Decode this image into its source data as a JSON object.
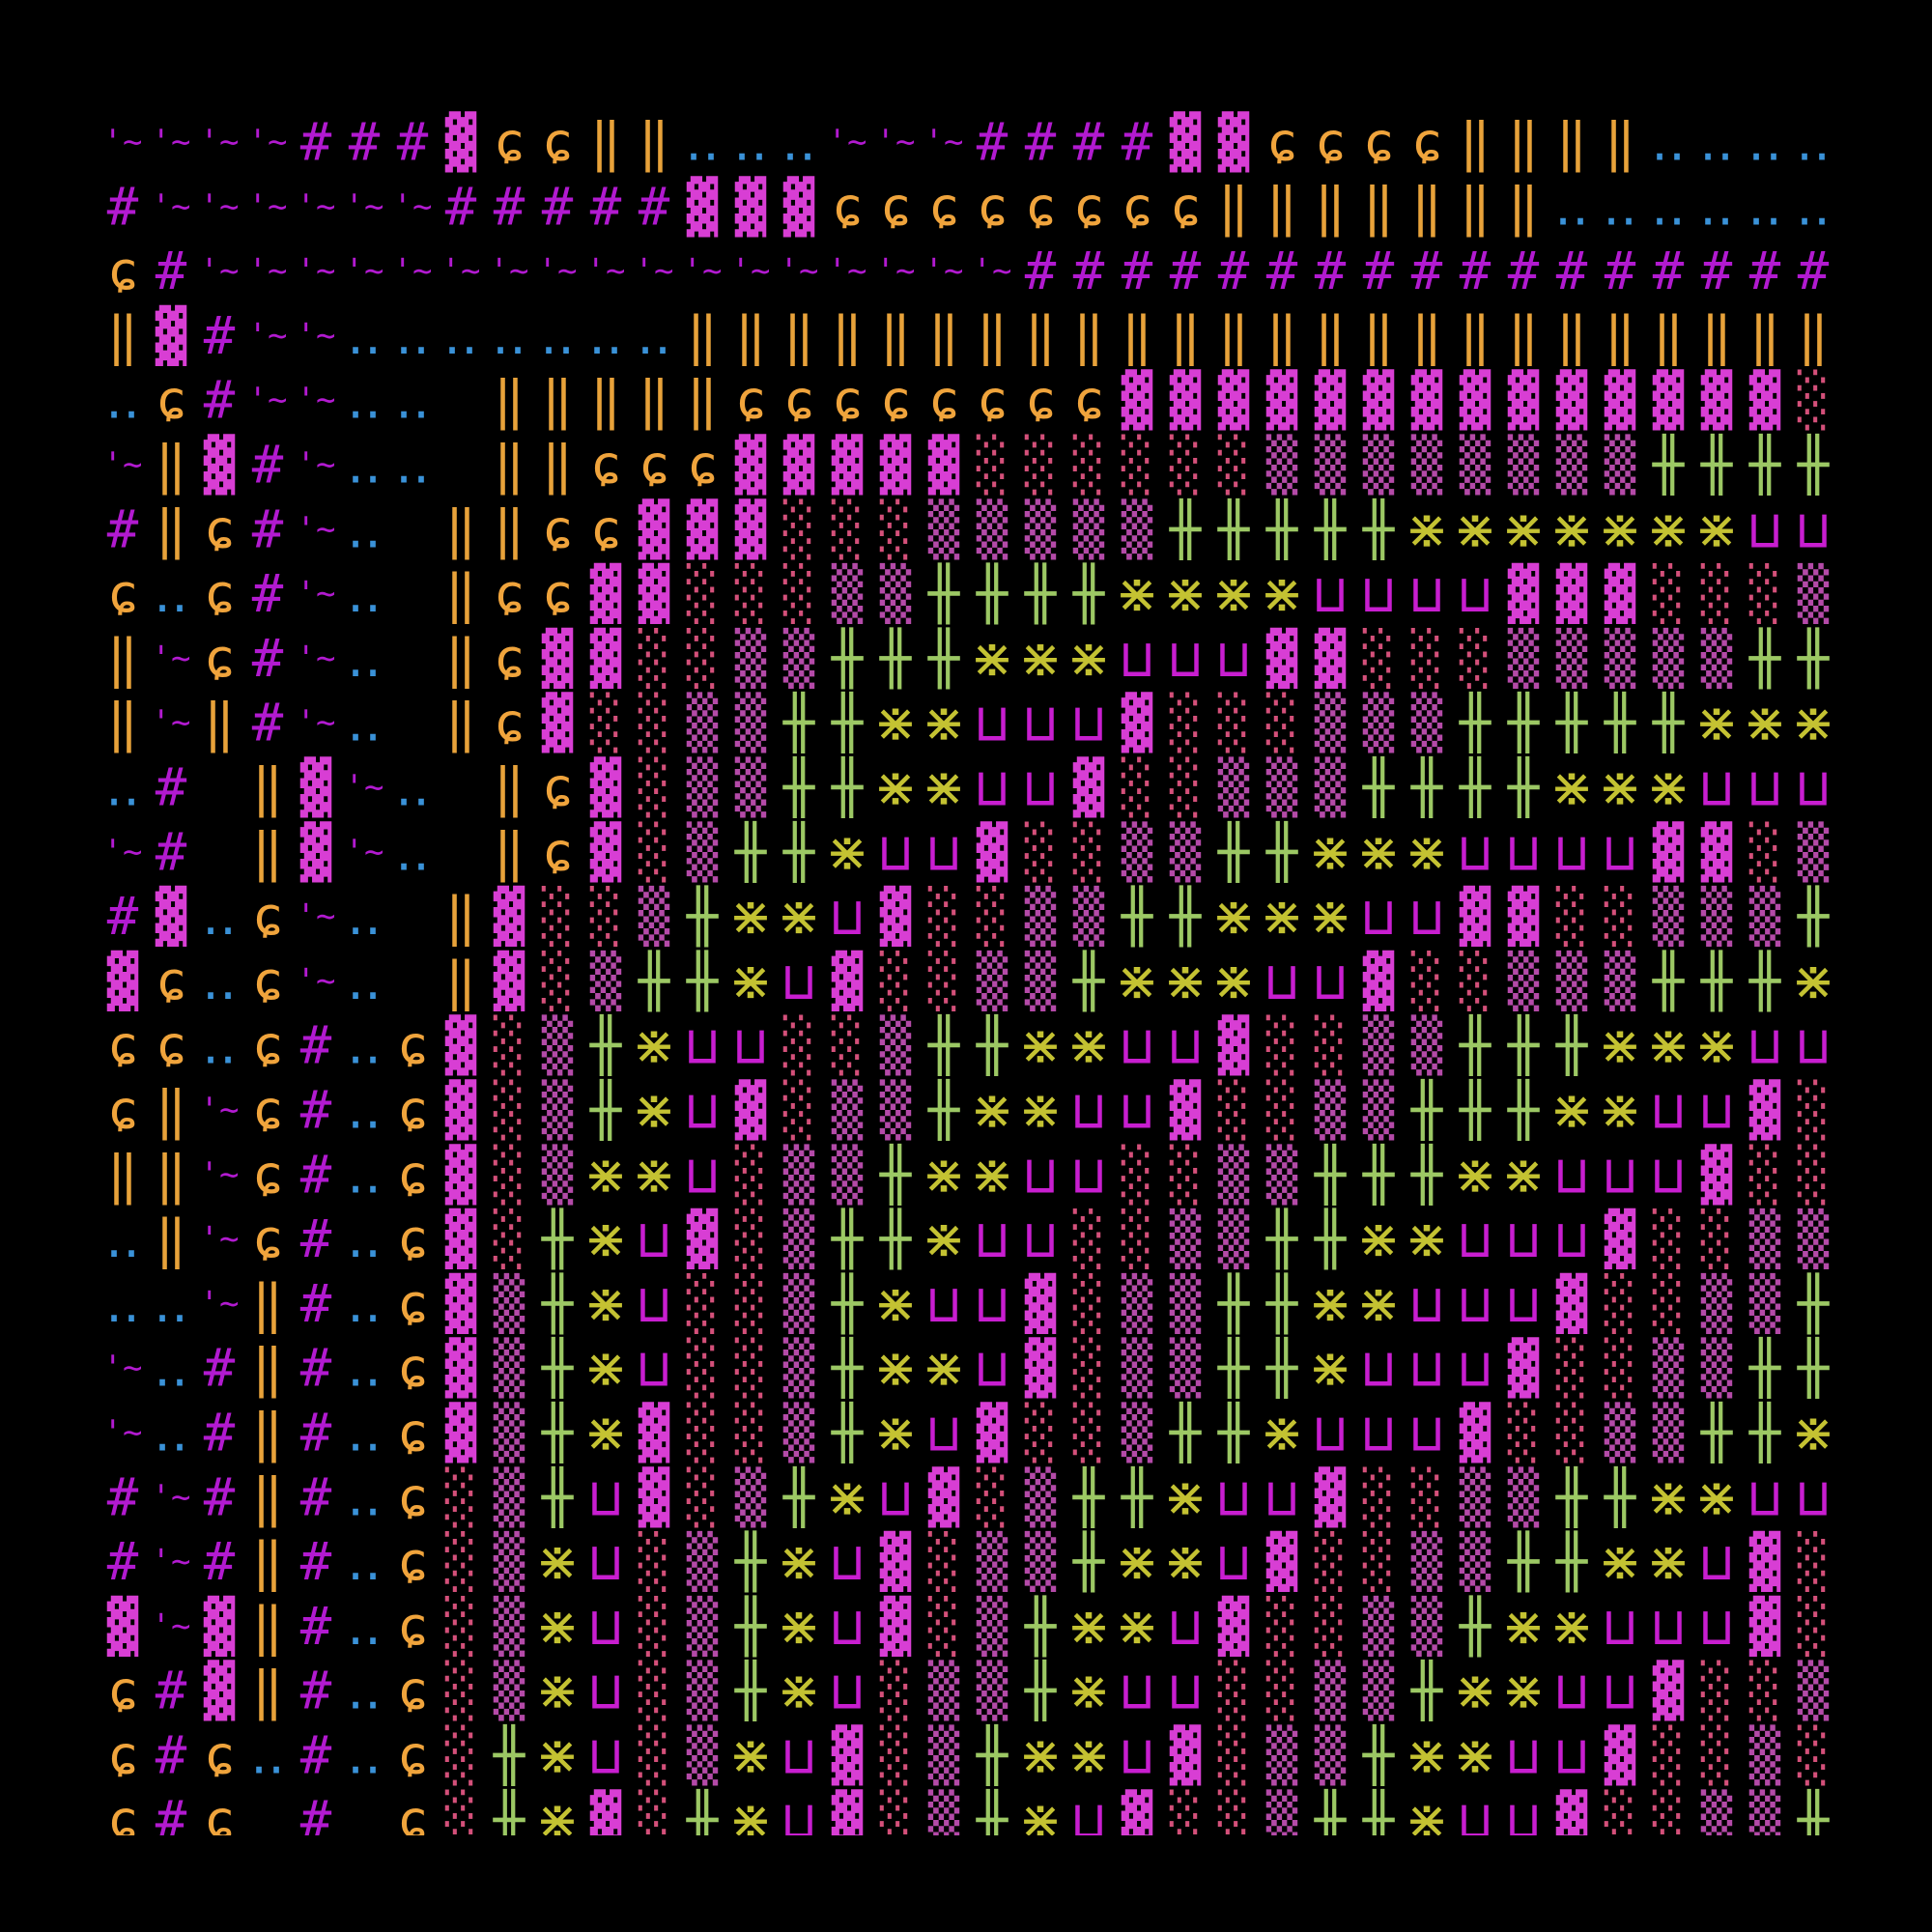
{
  "grid": {
    "palette": {
      "#": "#b21ad0",
      "'~": "#b21ad0",
      "ɕ": "#f0a43c",
      "‖": "#e8a23a",
      "‥": "#3a92d8",
      "▓": "#d83ed4",
      "░": "#d4507a",
      "▒": "#b44aa8",
      "╫": "#9cc864",
      "⋇": "#c4c232",
      "⊔": "#c81ed0"
    },
    "rows": [
      [
        "'~",
        "'~",
        "'~",
        "'~",
        "#",
        "#",
        "#",
        "▓",
        "ɕ",
        "ɕ",
        "‖",
        "‖",
        "‥",
        "‥",
        "‥",
        "'~",
        "'~",
        "'~",
        "#",
        "#",
        "#",
        "#",
        "▓",
        "▓",
        "ɕ",
        "ɕ",
        "ɕ",
        "ɕ",
        "‖",
        "‖",
        "‖",
        "‖",
        "‥",
        "‥",
        "‥",
        "‥"
      ],
      [
        "#",
        "'~",
        "'~",
        "'~",
        "'~",
        "'~",
        "'~",
        "#",
        "#",
        "#",
        "#",
        "#",
        "▓",
        "▓",
        "▓",
        "ɕ",
        "ɕ",
        "ɕ",
        "ɕ",
        "ɕ",
        "ɕ",
        "ɕ",
        "ɕ",
        "‖",
        "‖",
        "‖",
        "‖",
        "‖",
        "‖",
        "‖",
        "‥",
        "‥",
        "‥",
        "‥",
        "‥",
        "‥"
      ],
      [
        "ɕ",
        "#",
        "'~",
        "'~",
        "'~",
        "'~",
        "'~",
        "'~",
        "'~",
        "'~",
        "'~",
        "'~",
        "'~",
        "'~",
        "'~",
        "'~",
        "'~",
        "'~",
        "'~",
        "#",
        "#",
        "#",
        "#",
        "#",
        "#",
        "#",
        "#",
        "#",
        "#",
        "#",
        "#",
        "#",
        "#",
        "#",
        "#",
        "#"
      ],
      [
        "‖",
        "▓",
        "#",
        "'~",
        "'~",
        "‥",
        "‥",
        "‥",
        "‥",
        "‥",
        "‥",
        "‥",
        "‖",
        "‖",
        "‖",
        "‖",
        "‖",
        "‖",
        "‖",
        "‖",
        "‖",
        "‖",
        "‖",
        "‖",
        "‖",
        "‖",
        "‖",
        "‖",
        "‖",
        "‖",
        "‖",
        "‖",
        "‖",
        "‖",
        "‖",
        "‖"
      ],
      [
        "‥",
        "ɕ",
        "#",
        "'~",
        "'~",
        "‥",
        "‥",
        null,
        "‖",
        "‖",
        "‖",
        "‖",
        "‖",
        "ɕ",
        "ɕ",
        "ɕ",
        "ɕ",
        "ɕ",
        "ɕ",
        "ɕ",
        "ɕ",
        "▓",
        "▓",
        "▓",
        "▓",
        "▓",
        "▓",
        "▓",
        "▓",
        "▓",
        "▓",
        "▓",
        "▓",
        "▓",
        "▓",
        "░"
      ],
      [
        "'~",
        "‖",
        "▓",
        "#",
        "'~",
        "‥",
        "‥",
        null,
        "‖",
        "‖",
        "ɕ",
        "ɕ",
        "ɕ",
        "▓",
        "▓",
        "▓",
        "▓",
        "▓",
        "░",
        "░",
        "░",
        "░",
        "░",
        "░",
        "▒",
        "▒",
        "▒",
        "▒",
        "▒",
        "▒",
        "▒",
        "▒",
        "╫",
        "╫",
        "╫",
        "╫"
      ],
      [
        "#",
        "‖",
        "ɕ",
        "#",
        "'~",
        "‥",
        null,
        "‖",
        "‖",
        "ɕ",
        "ɕ",
        "▓",
        "▓",
        "▓",
        "░",
        "░",
        "░",
        "▒",
        "▒",
        "▒",
        "▒",
        "▒",
        "╫",
        "╫",
        "╫",
        "╫",
        "╫",
        "⋇",
        "⋇",
        "⋇",
        "⋇",
        "⋇",
        "⋇",
        "⋇",
        "⊔",
        "⊔"
      ],
      [
        "ɕ",
        "‥",
        "ɕ",
        "#",
        "'~",
        "‥",
        null,
        "‖",
        "ɕ",
        "ɕ",
        "▓",
        "▓",
        "░",
        "░",
        "░",
        "▒",
        "▒",
        "╫",
        "╫",
        "╫",
        "╫",
        "⋇",
        "⋇",
        "⋇",
        "⋇",
        "⊔",
        "⊔",
        "⊔",
        "⊔",
        "▓",
        "▓",
        "▓",
        "░",
        "░",
        "░",
        "▒"
      ],
      [
        "‖",
        "'~",
        "ɕ",
        "#",
        "'~",
        "‥",
        null,
        "‖",
        "ɕ",
        "▓",
        "▓",
        "░",
        "░",
        "▒",
        "▒",
        "╫",
        "╫",
        "╫",
        "⋇",
        "⋇",
        "⋇",
        "⊔",
        "⊔",
        "⊔",
        "▓",
        "▓",
        "░",
        "░",
        "░",
        "▒",
        "▒",
        "▒",
        "▒",
        "▒",
        "╫",
        "╫"
      ],
      [
        "‖",
        "'~",
        "‖",
        "#",
        "'~",
        "‥",
        null,
        "‖",
        "ɕ",
        "▓",
        "░",
        "░",
        "▒",
        "▒",
        "╫",
        "╫",
        "⋇",
        "⋇",
        "⊔",
        "⊔",
        "⊔",
        "▓",
        "░",
        "░",
        "░",
        "▒",
        "▒",
        "▒",
        "╫",
        "╫",
        "╫",
        "╫",
        "╫",
        "⋇",
        "⋇",
        "⋇"
      ],
      [
        "‥",
        "#",
        null,
        "‖",
        "▓",
        "'~",
        "‥",
        null,
        "‖",
        "ɕ",
        "▓",
        "░",
        "▒",
        "▒",
        "╫",
        "╫",
        "⋇",
        "⋇",
        "⊔",
        "⊔",
        "▓",
        "░",
        "░",
        "▒",
        "▒",
        "▒",
        "╫",
        "╫",
        "╫",
        "╫",
        "⋇",
        "⋇",
        "⋇",
        "⊔",
        "⊔",
        "⊔"
      ],
      [
        "'~",
        "#",
        null,
        "‖",
        "▓",
        "'~",
        "‥",
        null,
        "‖",
        "ɕ",
        "▓",
        "░",
        "▒",
        "╫",
        "╫",
        "⋇",
        "⊔",
        "⊔",
        "▓",
        "░",
        "░",
        "▒",
        "▒",
        "╫",
        "╫",
        "⋇",
        "⋇",
        "⋇",
        "⊔",
        "⊔",
        "⊔",
        "⊔",
        "▓",
        "▓",
        "░",
        "▒"
      ],
      [
        "#",
        "▓",
        "‥",
        "ɕ",
        "'~",
        "‥",
        null,
        "‖",
        "▓",
        "░",
        "░",
        "▒",
        "╫",
        "⋇",
        "⋇",
        "⊔",
        "▓",
        "░",
        "░",
        "▒",
        "▒",
        "╫",
        "╫",
        "⋇",
        "⋇",
        "⋇",
        "⊔",
        "⊔",
        "▓",
        "▓",
        "░",
        "░",
        "▒",
        "▒",
        "▒",
        "╫"
      ],
      [
        "▓",
        "ɕ",
        "‥",
        "ɕ",
        "'~",
        "‥",
        null,
        "‖",
        "▓",
        "░",
        "▒",
        "╫",
        "╫",
        "⋇",
        "⊔",
        "▓",
        "░",
        "░",
        "▒",
        "▒",
        "╫",
        "⋇",
        "⋇",
        "⋇",
        "⊔",
        "⊔",
        "▓",
        "░",
        "░",
        "▒",
        "▒",
        "▒",
        "╫",
        "╫",
        "╫",
        "⋇"
      ],
      [
        "ɕ",
        "ɕ",
        "‥",
        "ɕ",
        "#",
        "‥",
        "ɕ",
        "▓",
        "░",
        "▒",
        "╫",
        "⋇",
        "⊔",
        "⊔",
        "░",
        "░",
        "▒",
        "╫",
        "╫",
        "⋇",
        "⋇",
        "⊔",
        "⊔",
        "▓",
        "░",
        "░",
        "▒",
        "▒",
        "╫",
        "╫",
        "╫",
        "⋇",
        "⋇",
        "⋇",
        "⊔",
        "⊔"
      ],
      [
        "ɕ",
        "‖",
        "'~",
        "ɕ",
        "#",
        "‥",
        "ɕ",
        "▓",
        "░",
        "▒",
        "╫",
        "⋇",
        "⊔",
        "▓",
        "░",
        "▒",
        "▒",
        "╫",
        "⋇",
        "⋇",
        "⊔",
        "⊔",
        "▓",
        "░",
        "░",
        "▒",
        "▒",
        "╫",
        "╫",
        "╫",
        "⋇",
        "⋇",
        "⊔",
        "⊔",
        "▓",
        "░"
      ],
      [
        "‖",
        "‖",
        "'~",
        "ɕ",
        "#",
        "‥",
        "ɕ",
        "▓",
        "░",
        "▒",
        "⋇",
        "⋇",
        "⊔",
        "░",
        "▒",
        "▒",
        "╫",
        "⋇",
        "⋇",
        "⊔",
        "⊔",
        "░",
        "░",
        "▒",
        "▒",
        "╫",
        "╫",
        "╫",
        "⋇",
        "⋇",
        "⊔",
        "⊔",
        "⊔",
        "▓",
        "░",
        "░"
      ],
      [
        "‥",
        "‖",
        "'~",
        "ɕ",
        "#",
        "‥",
        "ɕ",
        "▓",
        "░",
        "╫",
        "⋇",
        "⊔",
        "▓",
        "░",
        "▒",
        "╫",
        "╫",
        "⋇",
        "⊔",
        "⊔",
        "░",
        "░",
        "▒",
        "▒",
        "╫",
        "╫",
        "⋇",
        "⋇",
        "⊔",
        "⊔",
        "⊔",
        "▓",
        "░",
        "░",
        "▒",
        "▒"
      ],
      [
        "‥",
        "‥",
        "'~",
        "‖",
        "#",
        "‥",
        "ɕ",
        "▓",
        "▒",
        "╫",
        "⋇",
        "⊔",
        "░",
        "░",
        "▒",
        "╫",
        "⋇",
        "⊔",
        "⊔",
        "▓",
        "░",
        "▒",
        "▒",
        "╫",
        "╫",
        "⋇",
        "⋇",
        "⊔",
        "⊔",
        "⊔",
        "▓",
        "░",
        "░",
        "▒",
        "▒",
        "╫"
      ],
      [
        "'~",
        "‥",
        "#",
        "‖",
        "#",
        "‥",
        "ɕ",
        "▓",
        "▒",
        "╫",
        "⋇",
        "⊔",
        "░",
        "░",
        "▒",
        "╫",
        "⋇",
        "⋇",
        "⊔",
        "▓",
        "░",
        "▒",
        "▒",
        "╫",
        "╫",
        "⋇",
        "⊔",
        "⊔",
        "⊔",
        "▓",
        "░",
        "░",
        "▒",
        "▒",
        "╫",
        "╫"
      ],
      [
        "'~",
        "‥",
        "#",
        "‖",
        "#",
        "‥",
        "ɕ",
        "▓",
        "▒",
        "╫",
        "⋇",
        "▓",
        "░",
        "░",
        "▒",
        "╫",
        "⋇",
        "⊔",
        "▓",
        "░",
        "░",
        "▒",
        "╫",
        "╫",
        "⋇",
        "⊔",
        "⊔",
        "⊔",
        "▓",
        "░",
        "░",
        "▒",
        "▒",
        "╫",
        "╫",
        "⋇"
      ],
      [
        "#",
        "'~",
        "#",
        "‖",
        "#",
        "‥",
        "ɕ",
        "░",
        "▒",
        "╫",
        "⊔",
        "▓",
        "░",
        "▒",
        "╫",
        "⋇",
        "⊔",
        "▓",
        "░",
        "▒",
        "╫",
        "╫",
        "⋇",
        "⊔",
        "⊔",
        "▓",
        "░",
        "░",
        "▒",
        "▒",
        "╫",
        "╫",
        "⋇",
        "⋇",
        "⊔",
        "⊔"
      ],
      [
        "#",
        "'~",
        "#",
        "‖",
        "#",
        "‥",
        "ɕ",
        "░",
        "▒",
        "⋇",
        "⊔",
        "░",
        "▒",
        "╫",
        "⋇",
        "⊔",
        "▓",
        "░",
        "▒",
        "▒",
        "╫",
        "⋇",
        "⋇",
        "⊔",
        "▓",
        "░",
        "░",
        "▒",
        "▒",
        "╫",
        "╫",
        "⋇",
        "⋇",
        "⊔",
        "▓",
        "░"
      ],
      [
        "▓",
        "'~",
        "▓",
        "‖",
        "#",
        "‥",
        "ɕ",
        "░",
        "▒",
        "⋇",
        "⊔",
        "░",
        "▒",
        "╫",
        "⋇",
        "⊔",
        "▓",
        "░",
        "▒",
        "╫",
        "⋇",
        "⋇",
        "⊔",
        "▓",
        "░",
        "░",
        "▒",
        "▒",
        "╫",
        "⋇",
        "⋇",
        "⊔",
        "⊔",
        "⊔",
        "▓",
        "░"
      ],
      [
        "ɕ",
        "#",
        "▓",
        "‖",
        "#",
        "‥",
        "ɕ",
        "░",
        "▒",
        "⋇",
        "⊔",
        "░",
        "▒",
        "╫",
        "⋇",
        "⊔",
        "░",
        "▒",
        "▒",
        "╫",
        "⋇",
        "⊔",
        "⊔",
        "░",
        "░",
        "▒",
        "▒",
        "╫",
        "⋇",
        "⋇",
        "⊔",
        "⊔",
        "▓",
        "░",
        "░",
        "▒"
      ],
      [
        "ɕ",
        "#",
        "ɕ",
        "‥",
        "#",
        "‥",
        "ɕ",
        "░",
        "╫",
        "⋇",
        "⊔",
        "░",
        "▒",
        "⋇",
        "⊔",
        "▓",
        "░",
        "▒",
        "╫",
        "⋇",
        "⋇",
        "⊔",
        "▓",
        "░",
        "▒",
        "▒",
        "╫",
        "⋇",
        "⋇",
        "⊔",
        "⊔",
        "▓",
        "░",
        "░",
        "▒",
        "░"
      ],
      [
        "ɕ",
        "#",
        "ɕ",
        null,
        "#",
        null,
        "ɕ",
        "░",
        "╫",
        "⋇",
        "▓",
        "░",
        "╫",
        "⋇",
        "⊔",
        "▓",
        "░",
        "▒",
        "╫",
        "⋇",
        "⊔",
        "▓",
        "░",
        "░",
        "▒",
        "╫",
        "╫",
        "⋇",
        "⊔",
        "⊔",
        "▓",
        "░",
        "░",
        "▒",
        "▒",
        "╫"
      ]
    ]
  }
}
